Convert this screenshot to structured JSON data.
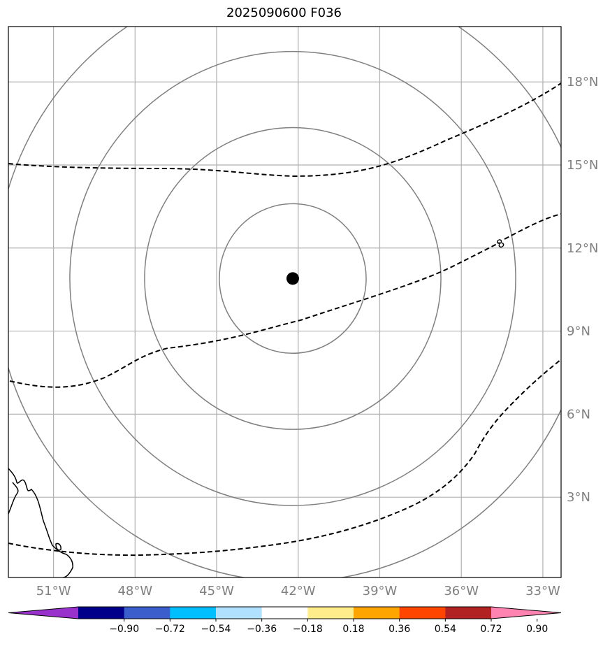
{
  "title": "2025090600 F036",
  "map": {
    "lon_range": [
      -52.66,
      -32.33
    ],
    "lat_range": [
      0.1,
      20.0
    ],
    "lon_ticks": [
      {
        "value": -51,
        "label": "51°W"
      },
      {
        "value": -48,
        "label": "48°W"
      },
      {
        "value": -45,
        "label": "45°W"
      },
      {
        "value": -42,
        "label": "42°W"
      },
      {
        "value": -39,
        "label": "39°W"
      },
      {
        "value": -36,
        "label": "36°W"
      },
      {
        "value": -33,
        "label": "33°W"
      }
    ],
    "lat_ticks": [
      {
        "value": 3,
        "label": "3°N"
      },
      {
        "value": 6,
        "label": "6°N"
      },
      {
        "value": 9,
        "label": "9°N"
      },
      {
        "value": 12,
        "label": "12°N"
      },
      {
        "value": 15,
        "label": "15°N"
      },
      {
        "value": 18,
        "label": "18°N"
      }
    ],
    "center": {
      "lon": -42.2,
      "lat": 10.9
    },
    "range_rings_deg": [
      2.7,
      5.45,
      8.2,
      10.95
    ],
    "contour_label": "8",
    "colors": {
      "grid": "#b0b0b0",
      "rings": "#808080",
      "contours": "#000000",
      "marker": "#000000"
    }
  },
  "colorbar": {
    "colors": [
      "#9932cc",
      "#00008b",
      "#3a5fcd",
      "#00bfff",
      "#b0e2ff",
      "#ffffff",
      "#ffec8b",
      "#ffa500",
      "#ff4500",
      "#b22222",
      "#ff83b0"
    ],
    "tick_labels": [
      "−0.90",
      "−0.72",
      "−0.54",
      "−0.36",
      "−0.18",
      "0.18",
      "0.36",
      "0.54",
      "0.72",
      "0.90"
    ]
  }
}
